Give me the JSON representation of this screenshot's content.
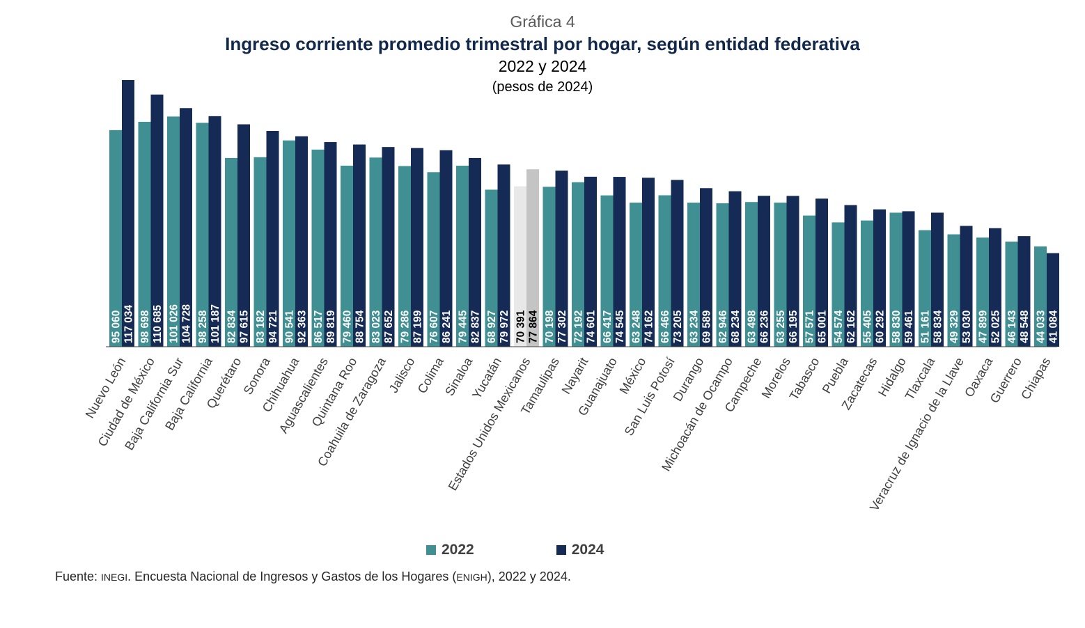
{
  "header": {
    "label": "Gráfica 4",
    "title": "Ingreso corriente promedio trimestral por hogar, según entidad federativa",
    "subtitle": "2022 y 2024",
    "units": "(pesos de 2024)"
  },
  "legend": {
    "a": "2022",
    "b": "2024"
  },
  "source": {
    "prefix": "Fuente: ",
    "org": "INEGI",
    "mid": ". Encuesta Nacional de Ingresos y Gastos de los Hogares (",
    "abbr": "ENIGH",
    "end": "), 2022 y 2024."
  },
  "colors": {
    "y2022": "#3f8f93",
    "y2024": "#152a55",
    "national2022": "#e8e8e8",
    "national2024": "#c4c4c4",
    "axis": "#404040",
    "labelText": "#ffffff",
    "nationalLabelText": "#000000"
  },
  "chart_data": {
    "type": "bar",
    "highlight_category": "Estados Unidos Mexicanos",
    "categories": [
      "Nuevo León",
      "Ciudad de México",
      "Baja California Sur",
      "Baja California",
      "Querétaro",
      "Sonora",
      "Chihuahua",
      "Aguascalientes",
      "Quintana Roo",
      "Coahuila de Zaragoza",
      "Jalisco",
      "Colima",
      "Sinaloa",
      "Yucatán",
      "Estados Unidos Mexicanos",
      "Tamaulipas",
      "Nayarit",
      "Guanajuato",
      "México",
      "San Luis Potosí",
      "Durango",
      "Michoacán de Ocampo",
      "Campeche",
      "Morelos",
      "Tabasco",
      "Puebla",
      "Zacatecas",
      "Hidalgo",
      "Tlaxcala",
      "Veracruz de Ignacio de la Llave",
      "Oaxaca",
      "Guerrero",
      "Chiapas"
    ],
    "series": [
      {
        "name": "2022",
        "values": [
          95060,
          98698,
          101026,
          98258,
          82834,
          83182,
          90541,
          86517,
          79460,
          83023,
          79286,
          76607,
          79445,
          68927,
          70391,
          70198,
          72192,
          66417,
          63248,
          66466,
          63234,
          62946,
          63498,
          63255,
          57571,
          54574,
          55405,
          58830,
          51161,
          49329,
          47899,
          46143,
          44033
        ],
        "labels": [
          "95 060",
          "98 698",
          "101 026",
          "98 258",
          "82 834",
          "83 182",
          "90 541",
          "86 517",
          "79 460",
          "83 023",
          "79 286",
          "76 607",
          "79 445",
          "68 927",
          "70 391",
          "70 198",
          "72 192",
          "66 417",
          "63 248",
          "66 466",
          "63 234",
          "62 946",
          "63 498",
          "63 255",
          "57 571",
          "54 574",
          "55 405",
          "58 830",
          "51 161",
          "49 329",
          "47 899",
          "46 143",
          "44 033"
        ]
      },
      {
        "name": "2024",
        "values": [
          117034,
          110685,
          104728,
          101187,
          97615,
          94721,
          92363,
          89819,
          88754,
          87652,
          87199,
          86241,
          82837,
          79972,
          77864,
          77302,
          74601,
          74545,
          74162,
          73205,
          69589,
          68234,
          66236,
          66195,
          65001,
          62162,
          60292,
          59461,
          58834,
          53030,
          52025,
          48548,
          41084
        ],
        "labels": [
          "117 034",
          "110 685",
          "104 728",
          "101 187",
          "97 615",
          "94 721",
          "92 363",
          "89 819",
          "88 754",
          "87 652",
          "87 199",
          "86 241",
          "82 837",
          "79 972",
          "77 864",
          "77 302",
          "74 601",
          "74 545",
          "74 162",
          "73 205",
          "69 589",
          "68 234",
          "66 236",
          "66 195",
          "65 001",
          "62 162",
          "60 292",
          "59 461",
          "58 834",
          "53 030",
          "52 025",
          "48 548",
          "41 084"
        ]
      }
    ],
    "ylim": [
      0,
      117034
    ],
    "grid": false,
    "legend_position": "bottom"
  }
}
